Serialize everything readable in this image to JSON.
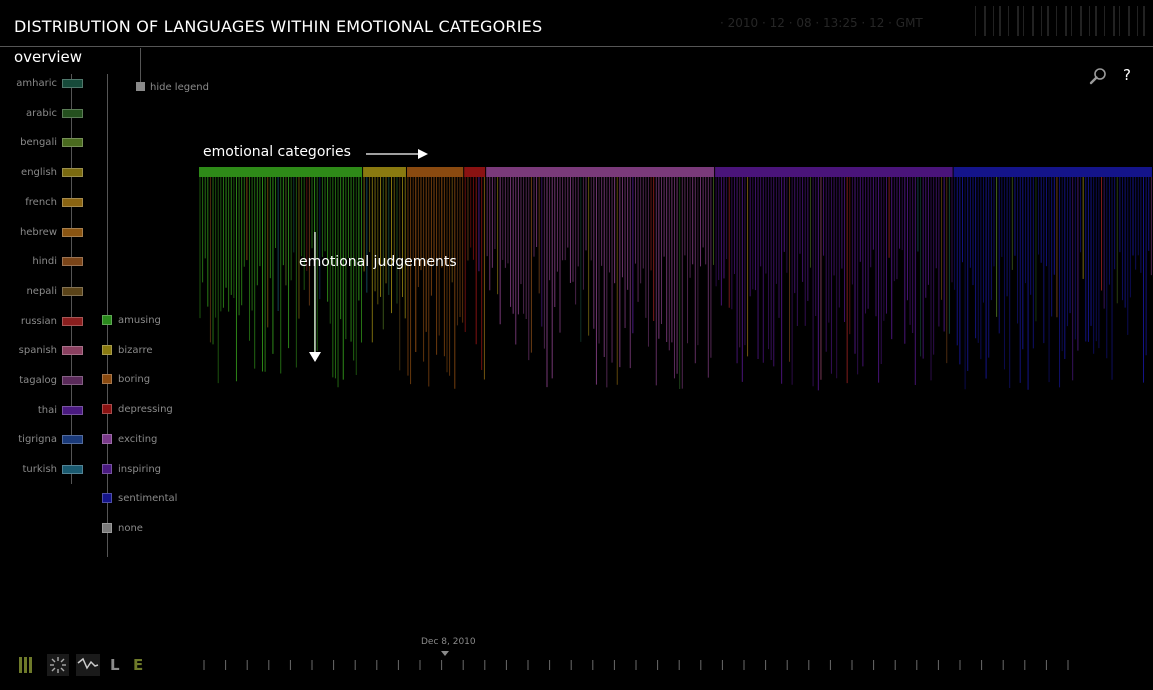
{
  "header": {
    "title": "DISTRIBUTION OF LANGUAGES WITHIN EMOTIONAL CATEGORIES",
    "faint_text": "· 2010 · 12 · 08 · 13:25 · 12 · GMT"
  },
  "sidebar": {
    "title": "overview",
    "hide_legend_label": "hide legend",
    "languages": [
      {
        "label": "amharic",
        "color": "#164a3a"
      },
      {
        "label": "arabic",
        "color": "#24501e"
      },
      {
        "label": "bengali",
        "color": "#4a6b1f"
      },
      {
        "label": "english",
        "color": "#7a6a10"
      },
      {
        "label": "french",
        "color": "#8a6412"
      },
      {
        "label": "hebrew",
        "color": "#8a5512"
      },
      {
        "label": "hindi",
        "color": "#7a4418"
      },
      {
        "label": "nepali",
        "color": "#5a4318"
      },
      {
        "label": "russian",
        "color": "#8a1e1e"
      },
      {
        "label": "spanish",
        "color": "#8a4060"
      },
      {
        "label": "tagalog",
        "color": "#5a2a5a"
      },
      {
        "label": "thai",
        "color": "#4a1a80"
      },
      {
        "label": "tigrigna",
        "color": "#1a3a7a"
      },
      {
        "label": "turkish",
        "color": "#1a5a70"
      }
    ],
    "emotions": [
      {
        "label": "amusing",
        "color": "#2a8a1c"
      },
      {
        "label": "bizarre",
        "color": "#8a7a10"
      },
      {
        "label": "boring",
        "color": "#8a4a10"
      },
      {
        "label": "depressing",
        "color": "#8a1212"
      },
      {
        "label": "exciting",
        "color": "#7a3a8a"
      },
      {
        "label": "inspiring",
        "color": "#4a1a80"
      },
      {
        "label": "sentimental",
        "color": "#14148a"
      },
      {
        "label": "none",
        "color": "#7a7a7a"
      }
    ]
  },
  "toolbar": {
    "search_icon": "search-icon",
    "help_label": "?"
  },
  "annotations": {
    "categories_label": "emotional categories",
    "judgements_label": "emotional judgements"
  },
  "chart_data": {
    "type": "bar",
    "title": "",
    "categories": [
      "amusing",
      "bizarre",
      "boring",
      "depressing",
      "exciting",
      "inspiring",
      "sentimental"
    ],
    "category_colors": [
      "#2e8a18",
      "#8a7a10",
      "#8a4a10",
      "#8a1212",
      "#7a3a7a",
      "#4a147a",
      "#14148a"
    ],
    "values": [
      0.172,
      0.046,
      0.06,
      0.023,
      0.24,
      0.25,
      0.209
    ],
    "ylabel": "",
    "xlabel": ""
  },
  "timeline": {
    "date_label": "Dec 8, 2010"
  },
  "bottom_icons": {
    "l_label": "L",
    "e_label": "E"
  }
}
